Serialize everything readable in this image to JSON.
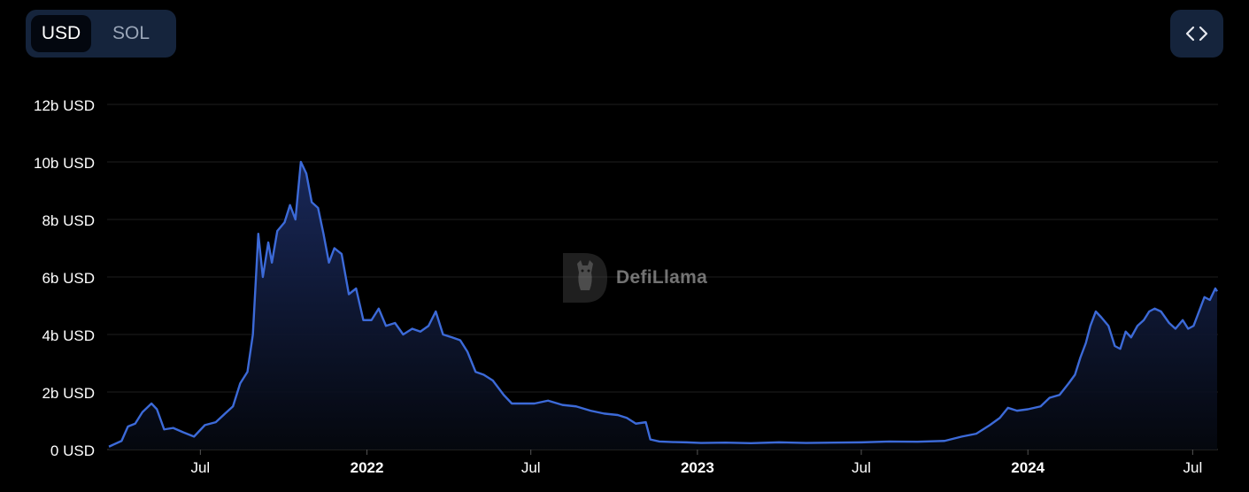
{
  "toggle": {
    "usd_label": "USD",
    "sol_label": "SOL",
    "selected": "USD"
  },
  "embed_icon": "code-icon",
  "watermark": {
    "text": "DefiLlama",
    "icon": "llama-logo-icon"
  },
  "colors": {
    "line": "#3c6ad8",
    "fill_top": "#1a2a5e",
    "fill_bottom": "#05080f",
    "grid": "#1e1e1e",
    "axis_text": "#ffffff"
  },
  "chart_data": {
    "type": "area",
    "title": "",
    "xlabel": "",
    "ylabel": "",
    "ylim": [
      0,
      12
    ],
    "y_unit": "b USD",
    "y_ticks": [
      "0 USD",
      "2b USD",
      "4b USD",
      "6b USD",
      "8b USD",
      "10b USD",
      "12b USD"
    ],
    "x_ticks": [
      "Jul",
      "2022",
      "Jul",
      "2023",
      "Jul",
      "2024",
      "Jul"
    ],
    "x_tick_dates": [
      "2021-07-01",
      "2022-01-01",
      "2022-07-01",
      "2023-01-01",
      "2023-07-01",
      "2024-01-01",
      "2024-07-01"
    ],
    "grid": true,
    "series": [
      {
        "values": [
          [
            "2021-03-22",
            0.1
          ],
          [
            "2021-04-05",
            0.3
          ],
          [
            "2021-04-12",
            0.8
          ],
          [
            "2021-04-20",
            0.9
          ],
          [
            "2021-04-28",
            1.3
          ],
          [
            "2021-05-08",
            1.6
          ],
          [
            "2021-05-14",
            1.4
          ],
          [
            "2021-05-22",
            0.7
          ],
          [
            "2021-06-01",
            0.75
          ],
          [
            "2021-06-12",
            0.6
          ],
          [
            "2021-06-24",
            0.45
          ],
          [
            "2021-07-06",
            0.85
          ],
          [
            "2021-07-18",
            0.95
          ],
          [
            "2021-07-30",
            1.3
          ],
          [
            "2021-08-06",
            1.5
          ],
          [
            "2021-08-14",
            2.3
          ],
          [
            "2021-08-22",
            2.7
          ],
          [
            "2021-08-28",
            4.0
          ],
          [
            "2021-09-03",
            7.5
          ],
          [
            "2021-09-08",
            6.0
          ],
          [
            "2021-09-14",
            7.2
          ],
          [
            "2021-09-18",
            6.5
          ],
          [
            "2021-09-24",
            7.6
          ],
          [
            "2021-10-02",
            7.9
          ],
          [
            "2021-10-08",
            8.5
          ],
          [
            "2021-10-14",
            8.0
          ],
          [
            "2021-10-20",
            10.0
          ],
          [
            "2021-10-26",
            9.6
          ],
          [
            "2021-11-01",
            8.6
          ],
          [
            "2021-11-08",
            8.4
          ],
          [
            "2021-11-14",
            7.5
          ],
          [
            "2021-11-20",
            6.5
          ],
          [
            "2021-11-26",
            7.0
          ],
          [
            "2021-12-04",
            6.8
          ],
          [
            "2021-12-12",
            5.4
          ],
          [
            "2021-12-20",
            5.6
          ],
          [
            "2021-12-28",
            4.5
          ],
          [
            "2022-01-06",
            4.5
          ],
          [
            "2022-01-14",
            4.9
          ],
          [
            "2022-01-22",
            4.3
          ],
          [
            "2022-02-01",
            4.4
          ],
          [
            "2022-02-10",
            4.0
          ],
          [
            "2022-02-20",
            4.2
          ],
          [
            "2022-03-01",
            4.1
          ],
          [
            "2022-03-10",
            4.3
          ],
          [
            "2022-03-18",
            4.8
          ],
          [
            "2022-03-26",
            4.0
          ],
          [
            "2022-04-05",
            3.9
          ],
          [
            "2022-04-14",
            3.8
          ],
          [
            "2022-04-22",
            3.4
          ],
          [
            "2022-05-01",
            2.7
          ],
          [
            "2022-05-10",
            2.6
          ],
          [
            "2022-05-20",
            2.4
          ],
          [
            "2022-06-01",
            1.9
          ],
          [
            "2022-06-10",
            1.6
          ],
          [
            "2022-06-20",
            1.6
          ],
          [
            "2022-07-05",
            1.6
          ],
          [
            "2022-07-20",
            1.7
          ],
          [
            "2022-08-05",
            1.55
          ],
          [
            "2022-08-20",
            1.5
          ],
          [
            "2022-09-05",
            1.35
          ],
          [
            "2022-09-20",
            1.25
          ],
          [
            "2022-10-05",
            1.2
          ],
          [
            "2022-10-15",
            1.1
          ],
          [
            "2022-10-25",
            0.9
          ],
          [
            "2022-11-05",
            0.95
          ],
          [
            "2022-11-10",
            0.35
          ],
          [
            "2022-11-20",
            0.28
          ],
          [
            "2022-12-05",
            0.26
          ],
          [
            "2022-12-20",
            0.25
          ],
          [
            "2023-01-05",
            0.23
          ],
          [
            "2023-02-01",
            0.24
          ],
          [
            "2023-03-01",
            0.22
          ],
          [
            "2023-04-01",
            0.25
          ],
          [
            "2023-05-01",
            0.23
          ],
          [
            "2023-06-01",
            0.24
          ],
          [
            "2023-07-01",
            0.25
          ],
          [
            "2023-08-01",
            0.28
          ],
          [
            "2023-09-01",
            0.27
          ],
          [
            "2023-10-01",
            0.3
          ],
          [
            "2023-10-20",
            0.45
          ],
          [
            "2023-11-05",
            0.55
          ],
          [
            "2023-11-20",
            0.85
          ],
          [
            "2023-12-01",
            1.1
          ],
          [
            "2023-12-10",
            1.45
          ],
          [
            "2023-12-20",
            1.35
          ],
          [
            "2024-01-01",
            1.4
          ],
          [
            "2024-01-15",
            1.5
          ],
          [
            "2024-01-25",
            1.8
          ],
          [
            "2024-02-05",
            1.9
          ],
          [
            "2024-02-15",
            2.3
          ],
          [
            "2024-02-22",
            2.6
          ],
          [
            "2024-02-28",
            3.2
          ],
          [
            "2024-03-05",
            3.7
          ],
          [
            "2024-03-10",
            4.3
          ],
          [
            "2024-03-16",
            4.8
          ],
          [
            "2024-03-22",
            4.6
          ],
          [
            "2024-03-30",
            4.3
          ],
          [
            "2024-04-06",
            3.6
          ],
          [
            "2024-04-12",
            3.5
          ],
          [
            "2024-04-18",
            4.1
          ],
          [
            "2024-04-24",
            3.9
          ],
          [
            "2024-05-01",
            4.3
          ],
          [
            "2024-05-08",
            4.5
          ],
          [
            "2024-05-14",
            4.8
          ],
          [
            "2024-05-20",
            4.9
          ],
          [
            "2024-05-27",
            4.8
          ],
          [
            "2024-06-05",
            4.4
          ],
          [
            "2024-06-12",
            4.2
          ],
          [
            "2024-06-20",
            4.5
          ],
          [
            "2024-06-26",
            4.2
          ],
          [
            "2024-07-02",
            4.3
          ],
          [
            "2024-07-08",
            4.8
          ],
          [
            "2024-07-14",
            5.3
          ],
          [
            "2024-07-20",
            5.2
          ],
          [
            "2024-07-26",
            5.6
          ],
          [
            "2024-07-28",
            5.5
          ]
        ]
      }
    ]
  }
}
